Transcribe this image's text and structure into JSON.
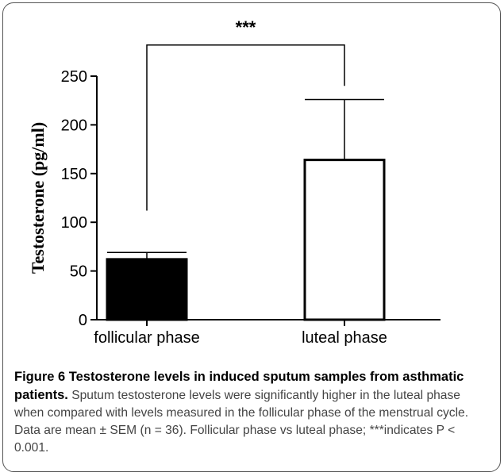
{
  "chart_data": {
    "type": "bar",
    "categories": [
      "follicular phase",
      "luteal phase"
    ],
    "series": [
      {
        "values": [
          62,
          164
        ],
        "error_upper": [
          69,
          226
        ],
        "fills": [
          "#000000",
          "#ffffff"
        ]
      }
    ],
    "ylabel": "Testosterone (pg/ml)",
    "xlabel": "",
    "ylim": [
      0,
      250
    ],
    "yticks": [
      0,
      50,
      100,
      150,
      200,
      250
    ],
    "grid": false,
    "significance": {
      "label": "***",
      "bracket_left_y": 112,
      "bracket_right_y": 240,
      "top_y": 282
    }
  },
  "caption": {
    "title": "Figure 6 Testosterone levels in induced sputum samples from asthmatic patients.",
    "body": " Sputum testosterone levels were significantly higher in the luteal phase when compared with levels measured in the follicular phase of the menstrual cycle. Data are mean ± SEM (n = 36). Follicular phase vs luteal phase; ***indicates P < 0.001."
  }
}
